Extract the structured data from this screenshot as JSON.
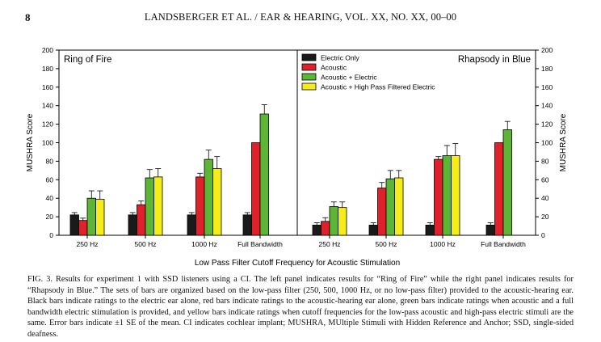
{
  "header": {
    "page_number": "8",
    "running_head": "LANDSBERGER ET AL. / EAR & HEARING, VOL. XX, NO. XX, 00–00"
  },
  "chart_data": {
    "type": "bar",
    "xlabel": "Low Pass Filter Cutoff Frequency for Acoustic Stimulation",
    "ylabel_left": "MUSHRA Score",
    "ylabel_right": "MUSHRA Score",
    "ylim": [
      0,
      200
    ],
    "yticks": [
      0,
      20,
      40,
      60,
      80,
      100,
      120,
      140,
      160,
      180,
      200
    ],
    "categories": [
      "250 Hz",
      "500 Hz",
      "1000 Hz",
      "Full Bandwidth"
    ],
    "legend": [
      {
        "name": "Electric Only",
        "color": "#1a1a1a"
      },
      {
        "name": "Acoustic",
        "color": "#e0202a"
      },
      {
        "name": "Acoustic + Electric",
        "color": "#5cb534"
      },
      {
        "name": "Acoustic + High Pass Filtered Electric",
        "color": "#f5ec1a"
      }
    ],
    "panels": [
      {
        "title": "Ring of Fire",
        "series": [
          {
            "name": "Electric Only",
            "values": [
              22,
              22,
              22,
              22
            ],
            "errors": [
              2.5,
              2.5,
              2.5,
              2.5
            ]
          },
          {
            "name": "Acoustic",
            "values": [
              16,
              33,
              63,
              100
            ],
            "errors": [
              2.5,
              4,
              4,
              0
            ]
          },
          {
            "name": "Acoustic + Electric",
            "values": [
              40,
              62,
              82,
              131
            ],
            "errors": [
              8,
              9,
              10,
              10
            ]
          },
          {
            "name": "Acoustic + High Pass Filtered Electric",
            "values": [
              39,
              63,
              72,
              null
            ],
            "errors": [
              9,
              9,
              13,
              0
            ]
          }
        ]
      },
      {
        "title": "Rhapsody in Blue",
        "series": [
          {
            "name": "Electric Only",
            "values": [
              11,
              11,
              11,
              11
            ],
            "errors": [
              2.5,
              2.5,
              2.5,
              2.5
            ]
          },
          {
            "name": "Acoustic",
            "values": [
              15,
              51,
              82,
              100
            ],
            "errors": [
              4,
              6,
              3,
              0
            ]
          },
          {
            "name": "Acoustic + Electric",
            "values": [
              31,
              61,
              86,
              114
            ],
            "errors": [
              5,
              9,
              11,
              9
            ]
          },
          {
            "name": "Acoustic + High Pass Filtered Electric",
            "values": [
              30,
              62,
              86,
              null
            ],
            "errors": [
              6,
              8,
              13,
              0
            ]
          }
        ]
      }
    ]
  },
  "caption": "FIG. 3. Results for experiment 1 with SSD listeners using a CI. The left panel indicates results for “Ring of Fire” while the right panel indicates results for “Rhapsody in Blue.” The sets of bars are organized based on the low-pass filter (250, 500, 1000 Hz, or no low-pass filter) provided to the acoustic-hearing ear. Black bars indicate ratings to the electric ear alone, red bars indicate ratings to the acoustic-hearing ear alone, green bars indicate ratings when acoustic and a full bandwidth electric stimulation is provided, and yellow bars indicate ratings when cutoff frequencies for the low-pass acoustic and high-pass electric stimuli are the same. Error bars indicate ±1 SE of the mean. CI indicates cochlear implant; MUSHRA, MUltiple Stimuli with Hidden Reference and Anchor; SSD, single-sided deafness."
}
